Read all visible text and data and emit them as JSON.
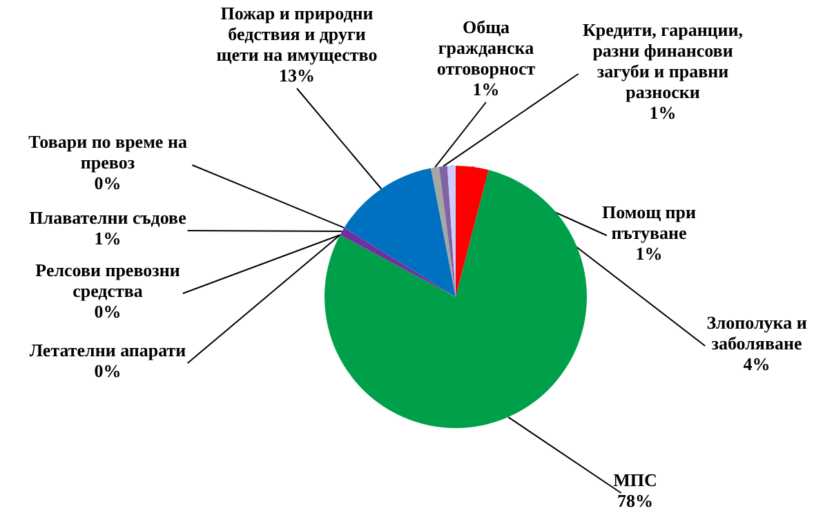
{
  "chart_data": {
    "type": "pie",
    "categories": [
      "Злополука и заболяване",
      "МПС",
      "Летателни апарати",
      "Релсови превозни средства",
      "Плавателни съдове",
      "Товари по време на превоз",
      "Пожар и природни бедствия и други щети на имущество",
      "Обща гражданска отговорност",
      "Кредити, гаранции, разни финансови загуби и правни разноски",
      "Помощ при пътуване"
    ],
    "values": [
      4,
      78,
      0,
      0,
      1,
      0,
      13,
      1,
      1,
      1
    ],
    "value_labels": [
      "4%",
      "78%",
      "0%",
      "0%",
      "1%",
      "0%",
      "13%",
      "1%",
      "1%",
      "1%"
    ],
    "colors": [
      "#ff0000",
      "#00a04a",
      "#5f5f4f",
      "#404040",
      "#7030a0",
      "#8b4513",
      "#0070c0",
      "#a6a6a6",
      "#8064a2",
      "#ccccff"
    ]
  }
}
